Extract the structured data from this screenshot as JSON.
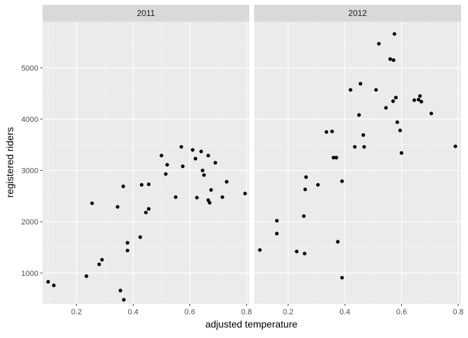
{
  "chart_data": {
    "type": "scatter",
    "xlabel": "adjusted temperature",
    "ylabel": "registered riders",
    "xlim": [
      0.08,
      0.81
    ],
    "ylim": [
      400,
      5900
    ],
    "x_ticks": [
      0.2,
      0.4,
      0.6,
      0.8
    ],
    "x_tick_labels": [
      "0.2",
      "0.4",
      "0.6",
      "0.8"
    ],
    "y_ticks": [
      1000,
      2000,
      3000,
      4000,
      5000
    ],
    "y_tick_labels": [
      "1000",
      "2000",
      "3000",
      "4000",
      "5000"
    ],
    "grid": true,
    "point_color": "#000000",
    "panel_background": "#ebebeb",
    "strip_background": "#d9d9d9",
    "facets": [
      {
        "label": "2011",
        "points": [
          {
            "x": 0.1,
            "y": 830
          },
          {
            "x": 0.12,
            "y": 760
          },
          {
            "x": 0.235,
            "y": 940
          },
          {
            "x": 0.255,
            "y": 2360
          },
          {
            "x": 0.28,
            "y": 1170
          },
          {
            "x": 0.29,
            "y": 1260
          },
          {
            "x": 0.345,
            "y": 2290
          },
          {
            "x": 0.355,
            "y": 660
          },
          {
            "x": 0.365,
            "y": 2690
          },
          {
            "x": 0.367,
            "y": 480
          },
          {
            "x": 0.38,
            "y": 1590
          },
          {
            "x": 0.38,
            "y": 1440
          },
          {
            "x": 0.425,
            "y": 1700
          },
          {
            "x": 0.43,
            "y": 2720
          },
          {
            "x": 0.445,
            "y": 2180
          },
          {
            "x": 0.455,
            "y": 2250
          },
          {
            "x": 0.455,
            "y": 2730
          },
          {
            "x": 0.5,
            "y": 3290
          },
          {
            "x": 0.515,
            "y": 2930
          },
          {
            "x": 0.52,
            "y": 3110
          },
          {
            "x": 0.55,
            "y": 2480
          },
          {
            "x": 0.57,
            "y": 3460
          },
          {
            "x": 0.575,
            "y": 3080
          },
          {
            "x": 0.61,
            "y": 3400
          },
          {
            "x": 0.62,
            "y": 3230
          },
          {
            "x": 0.625,
            "y": 2470
          },
          {
            "x": 0.64,
            "y": 3370
          },
          {
            "x": 0.645,
            "y": 3000
          },
          {
            "x": 0.65,
            "y": 2910
          },
          {
            "x": 0.665,
            "y": 3290
          },
          {
            "x": 0.665,
            "y": 2420
          },
          {
            "x": 0.67,
            "y": 2370
          },
          {
            "x": 0.675,
            "y": 2620
          },
          {
            "x": 0.69,
            "y": 3150
          },
          {
            "x": 0.715,
            "y": 2480
          },
          {
            "x": 0.73,
            "y": 2780
          },
          {
            "x": 0.795,
            "y": 2550
          }
        ]
      },
      {
        "label": "2012",
        "points": [
          {
            "x": 0.1,
            "y": 1450
          },
          {
            "x": 0.16,
            "y": 2020
          },
          {
            "x": 0.16,
            "y": 1770
          },
          {
            "x": 0.23,
            "y": 1420
          },
          {
            "x": 0.255,
            "y": 2110
          },
          {
            "x": 0.258,
            "y": 1380
          },
          {
            "x": 0.26,
            "y": 2630
          },
          {
            "x": 0.263,
            "y": 2870
          },
          {
            "x": 0.305,
            "y": 2720
          },
          {
            "x": 0.335,
            "y": 3750
          },
          {
            "x": 0.355,
            "y": 3760
          },
          {
            "x": 0.36,
            "y": 3250
          },
          {
            "x": 0.37,
            "y": 3250
          },
          {
            "x": 0.375,
            "y": 1610
          },
          {
            "x": 0.39,
            "y": 2790
          },
          {
            "x": 0.39,
            "y": 910
          },
          {
            "x": 0.42,
            "y": 4570
          },
          {
            "x": 0.435,
            "y": 3460
          },
          {
            "x": 0.45,
            "y": 4080
          },
          {
            "x": 0.455,
            "y": 4690
          },
          {
            "x": 0.465,
            "y": 3690
          },
          {
            "x": 0.468,
            "y": 3460
          },
          {
            "x": 0.51,
            "y": 4570
          },
          {
            "x": 0.52,
            "y": 5470
          },
          {
            "x": 0.545,
            "y": 4220
          },
          {
            "x": 0.56,
            "y": 5170
          },
          {
            "x": 0.57,
            "y": 4350
          },
          {
            "x": 0.572,
            "y": 5150
          },
          {
            "x": 0.575,
            "y": 5660
          },
          {
            "x": 0.58,
            "y": 4420
          },
          {
            "x": 0.585,
            "y": 3940
          },
          {
            "x": 0.595,
            "y": 3780
          },
          {
            "x": 0.6,
            "y": 3340
          },
          {
            "x": 0.645,
            "y": 4370
          },
          {
            "x": 0.66,
            "y": 4380
          },
          {
            "x": 0.665,
            "y": 4450
          },
          {
            "x": 0.67,
            "y": 4340
          },
          {
            "x": 0.705,
            "y": 4110
          },
          {
            "x": 0.79,
            "y": 3470
          }
        ]
      }
    ]
  }
}
